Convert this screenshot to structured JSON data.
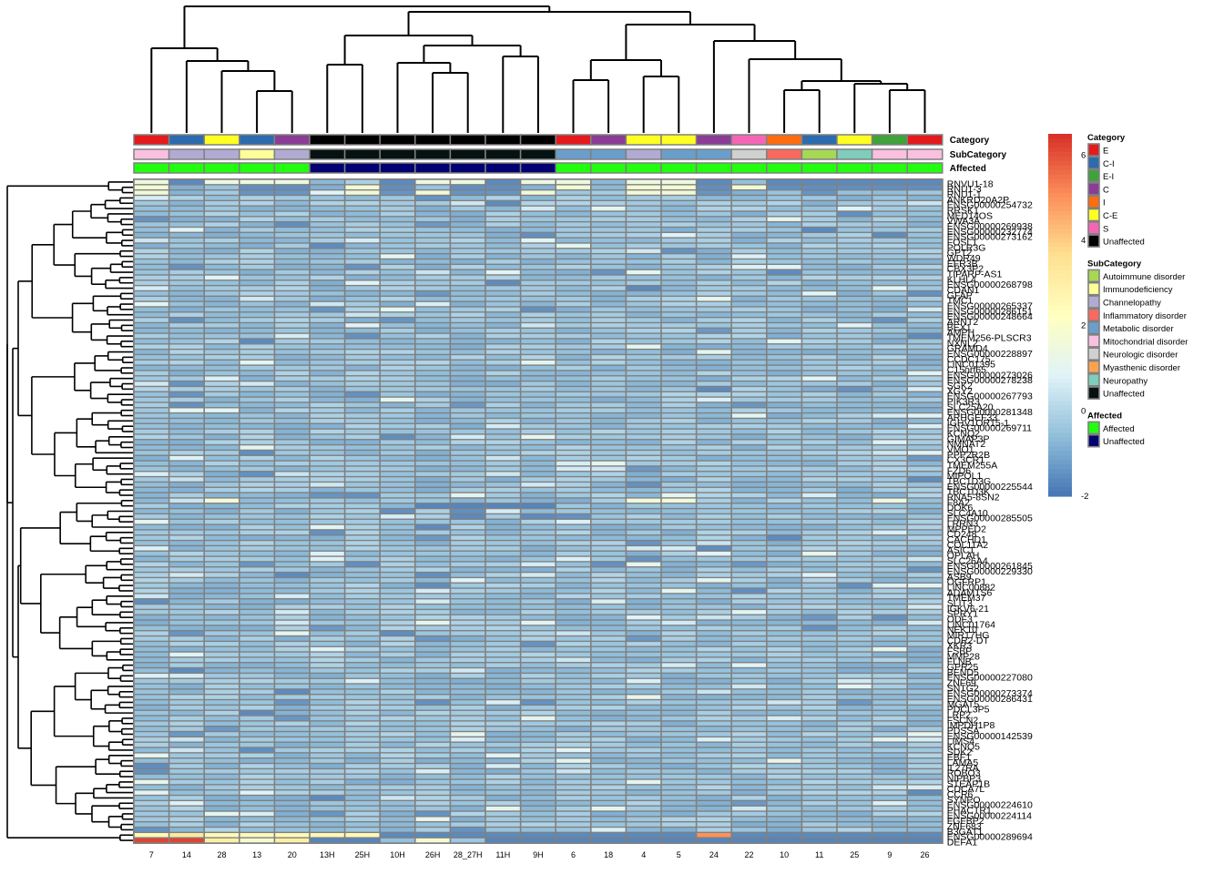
{
  "chart_data": {
    "type": "heatmap",
    "title": "",
    "columns": [
      "7",
      "14",
      "28",
      "13",
      "20",
      "13H",
      "25H",
      "10H",
      "26H",
      "28_27H",
      "11H",
      "9H",
      "6",
      "18",
      "4",
      "5",
      "24",
      "22",
      "10",
      "11",
      "25",
      "9",
      "26"
    ],
    "annotation_rows": [
      "Category",
      "SubCategory",
      "Affected"
    ],
    "annotations": {
      "Category": [
        "E",
        "C-I",
        "C-E",
        "C-I",
        "C",
        "Unaffected",
        "Unaffected",
        "Unaffected",
        "Unaffected",
        "Unaffected",
        "Unaffected",
        "Unaffected",
        "E",
        "C",
        "C-E",
        "C-E",
        "C",
        "S",
        "I",
        "C-I",
        "C-E",
        "E-I",
        "E"
      ],
      "SubCategory": [
        "Mitochondrial disorder",
        "Channelopathy",
        "Channelopathy",
        "Immunodeficiency",
        "Channelopathy",
        "Unaffected",
        "Unaffected",
        "Unaffected",
        "Unaffected",
        "Unaffected",
        "Unaffected",
        "Unaffected",
        "Metabolic disorder",
        "Metabolic disorder",
        "Channelopathy",
        "Metabolic disorder",
        "Metabolic disorder",
        "Neurologic disorder",
        "Inflammatory disorder",
        "Autoimmune disorder",
        "Neuropathy",
        "Mitochondrial disorder",
        "Mitochondrial disorder"
      ],
      "Affected": [
        "Affected",
        "Affected",
        "Affected",
        "Affected",
        "Affected",
        "Unaffected",
        "Unaffected",
        "Unaffected",
        "Unaffected",
        "Unaffected",
        "Unaffected",
        "Unaffected",
        "Affected",
        "Affected",
        "Affected",
        "Affected",
        "Affected",
        "Affected",
        "Affected",
        "Affected",
        "Affected",
        "Affected",
        "Affected"
      ]
    },
    "rows": [
      "RNVU1-18",
      "RNU1-3",
      "RNU1-1",
      "ANKRD20A2P",
      "ENSG00000254732",
      "RRSK1",
      "MED14OS",
      "VWA3A",
      "ENSG00000269938",
      "ENSG00000232774",
      "ENSG00000273162",
      "FOSL1",
      "POLR3G",
      "GPT2",
      "WDR49",
      "EFR3B",
      "CBX3P2",
      "TIPARP-AS1",
      "KLHL4",
      "ENSG00000268798",
      "CDAN1",
      "GFAP",
      "TMC1",
      "ENSG00000265337",
      "ENSG00000286151",
      "ENSG00000248664",
      "ARNT2",
      "BEX1",
      "AMPH",
      "TMEM256-PLSCR3",
      "NXNL2",
      "GRAMD4",
      "ENSG00000228897",
      "CCDC175",
      "LINC01395",
      "C15orf65",
      "ENSG00000273026",
      "ENSG00000278238",
      "SGK2",
      "XGY2",
      "ENSG00000267793",
      "PIK3R3",
      "SLC25A20",
      "ENSG00000281348",
      "ARHGEF33",
      "IGHV1OR15-1",
      "ENSG00000269711",
      "KCNQ2",
      "GIMAP3P",
      "NMNAT2",
      "VMO1",
      "PPP2R2B",
      "CX3CR1",
      "TMEM255A",
      "FZD6",
      "MIPOL1",
      "TBC1D3G",
      "ENSG00000225544",
      "TBC1D3K",
      "RNA5-8SN2",
      "F8A2",
      "DOK6",
      "SLC4A10",
      "ENSG00000285505",
      "LRRN3",
      "MPPED2",
      "CD248",
      "CACHD1",
      "COL11A2",
      "ASIC1",
      "OPLAH",
      "SLC26A4",
      "ENSG00000261845",
      "ENSG00000229330",
      "ASB9",
      "OGFRP1",
      "LINC00882",
      "ADAMTS6",
      "TMEM37",
      "SLIT3",
      "IGKV6-21",
      "SPRY1",
      "ODF3",
      "LINC01764",
      "NEK10",
      "MIR17HG",
      "CDR2-DT",
      "XKR3",
      "FSBP",
      "MMP28",
      "FLNB",
      "GPR25",
      "BEND5",
      "ENSG00000227080",
      "ZNF69",
      "SNTG2",
      "ENSG00000273374",
      "ENSG00000286431",
      "MGAT5",
      "PDCL3P5",
      "LRP2",
      "FSCN2",
      "IMPDH1P8",
      "PDSSA",
      "ENSG00000142539",
      "LIMS4",
      "KCNQ5",
      "SDK2",
      "EBF1",
      "LAMA5",
      "IL27RA",
      "ROBO3",
      "NIPBP3",
      "STEAP1B",
      "CDCA7L",
      "CCR6",
      "SYNPO",
      "ENSG00000224610",
      "PHACTR1",
      "ENSG00000224114",
      "FGFBP2",
      "ZNF683",
      "B3GAT1",
      "ENSG00000289694",
      "DEFA1"
    ],
    "color_scale": {
      "min": -2,
      "max": 6.5,
      "ticks": [
        -2,
        0,
        2,
        4,
        6
      ],
      "colors": [
        "#4575b4",
        "#91bfdb",
        "#e0f3f8",
        "#ffffbf",
        "#fee090",
        "#fc8d59",
        "#d73027"
      ]
    },
    "notes": "Per-cell values are not printed; most cells lie in the 0 to -1 range (light/medium blue). Notable highlights: top rows RNVU1-18/RNU1-3/RNU1-1 yellow in columns 7, 28, 25H, 5, 4; DEFA1 ~6 (red) in columns 7 and 14; ENSG00000289694 ~5 (orange) in column 24; block of dark blue (~-1.5) for DOK6/SLC4A10 rows in columns 26H, 28_27H, 11H."
  },
  "legends": {
    "Category": {
      "title": "Category",
      "items": [
        {
          "label": "E",
          "color": "#E41A1C"
        },
        {
          "label": "C-I",
          "color": "#2C6BAE"
        },
        {
          "label": "E-I",
          "color": "#3FA23A"
        },
        {
          "label": "C",
          "color": "#8B3D96"
        },
        {
          "label": "I",
          "color": "#FF6D10"
        },
        {
          "label": "C-E",
          "color": "#FFFF23"
        },
        {
          "label": "S",
          "color": "#F466B4"
        },
        {
          "label": "Unaffected",
          "color": "#000000"
        }
      ]
    },
    "SubCategory": {
      "title": "SubCategory",
      "items": [
        {
          "label": "Autoimmune disorder",
          "color": "#A6D854"
        },
        {
          "label": "Immunodeficiency",
          "color": "#FFFF99"
        },
        {
          "label": "Channelopathy",
          "color": "#B1ABD3"
        },
        {
          "label": "Inflammatory disorder",
          "color": "#F8695F"
        },
        {
          "label": "Metabolic disorder",
          "color": "#6A9ECB"
        },
        {
          "label": "Mitochondrial disorder",
          "color": "#F9C0DF"
        },
        {
          "label": "Neurologic disorder",
          "color": "#D0D0D0"
        },
        {
          "label": "Myasthenic disorder",
          "color": "#FDA24E"
        },
        {
          "label": "Neuropathy",
          "color": "#7FCDBB"
        },
        {
          "label": "Unaffected",
          "color": "#051211"
        }
      ]
    },
    "Affected": {
      "title": "Affected",
      "items": [
        {
          "label": "Affected",
          "color": "#21FF0F"
        },
        {
          "label": "Unaffected",
          "color": "#030170"
        }
      ]
    }
  }
}
